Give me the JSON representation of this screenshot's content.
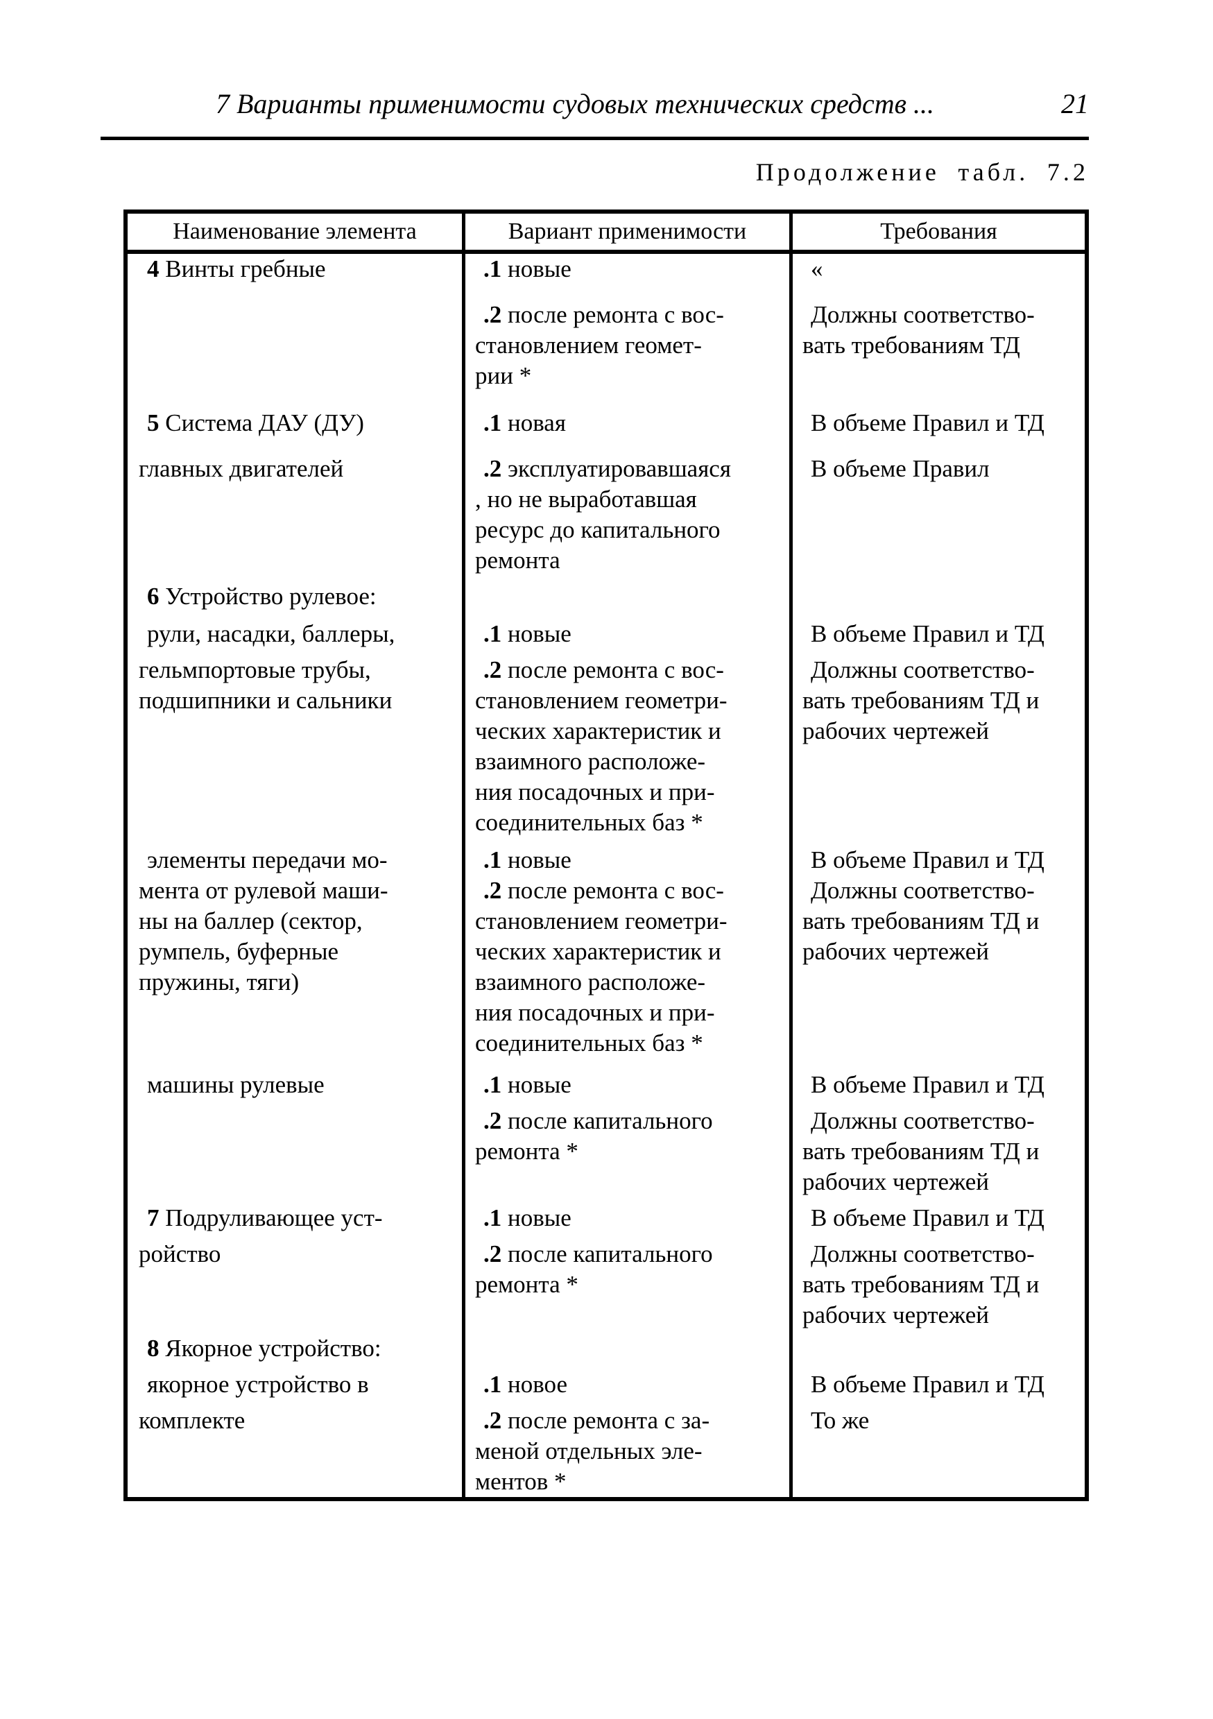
{
  "page": {
    "header": {
      "title": "7 Варианты применимости судовых технических средств ...",
      "page_number": "21"
    },
    "continuation": "Продолжение табл. 7.2",
    "table": {
      "columns": [
        "Наименование элемента",
        "Вариант применимости",
        "Требования"
      ],
      "rows": [
        {
          "sp": 0,
          "c": [
            {
              "b": "4",
              "t": " Винты гребные",
              "i": true
            },
            {
              "b": ".1",
              "t": " новые",
              "i": true
            },
            {
              "t": "«",
              "i": true
            }
          ]
        },
        {
          "sp": 22,
          "c": [
            null,
            {
              "b": ".2",
              "t": " после ремонта с вос-",
              "i": true
            },
            {
              "t": "Должны соответство-",
              "i": true
            }
          ]
        },
        {
          "sp": 0,
          "c": [
            null,
            {
              "t": "становлением геомет-"
            },
            {
              "t": "вать требованиям ТД"
            }
          ]
        },
        {
          "sp": 0,
          "c": [
            null,
            {
              "t": "рии *"
            },
            null
          ]
        },
        {
          "sp": 24,
          "c": [
            {
              "b": "5",
              "t": " Система ДАУ (ДУ)",
              "i": true
            },
            {
              "b": ".1",
              "t": " новая",
              "i": true
            },
            {
              "t": "В объеме Правил и ТД",
              "i": true
            }
          ]
        },
        {
          "sp": 22,
          "c": [
            {
              "t": "главных двигателей"
            },
            {
              "b": ".2",
              "t": " эксплуатировавшаяся",
              "i": true
            },
            {
              "t": "В объеме Правил",
              "i": true
            }
          ]
        },
        {
          "sp": 0,
          "c": [
            null,
            {
              "t": ", но не выработавшая"
            },
            null
          ]
        },
        {
          "sp": 0,
          "c": [
            null,
            {
              "t": "ресурс до капитального"
            },
            null
          ]
        },
        {
          "sp": 0,
          "c": [
            null,
            {
              "t": "ремонта"
            },
            null
          ]
        },
        {
          "sp": 8,
          "c": [
            {
              "b": "6",
              "t": " Устройство рулевое:",
              "i": true
            },
            null,
            null
          ]
        },
        {
          "sp": 10,
          "c": [
            {
              "t": "рули, насадки, баллеры,",
              "i": true
            },
            {
              "b": ".1",
              "t": " новые",
              "i": true
            },
            {
              "t": "В объеме Правил и ТД",
              "i": true
            }
          ]
        },
        {
          "sp": 8,
          "c": [
            {
              "t": "гельмпортовые трубы,"
            },
            {
              "b": ".2",
              "t": " после ремонта с вос-",
              "i": true
            },
            {
              "t": "Должны соответство-",
              "i": true
            }
          ]
        },
        {
          "sp": 0,
          "c": [
            {
              "t": "подшипники и сальники"
            },
            {
              "t": "становлением геометри-"
            },
            {
              "t": "вать требованиям ТД и"
            }
          ]
        },
        {
          "sp": 0,
          "c": [
            null,
            {
              "t": "ческих характеристик и"
            },
            {
              "t": "рабочих чертежей"
            }
          ]
        },
        {
          "sp": 0,
          "c": [
            null,
            {
              "t": "взаимного расположе-"
            },
            null
          ]
        },
        {
          "sp": 0,
          "c": [
            null,
            {
              "t": "ния посадочных и при-"
            },
            null
          ]
        },
        {
          "sp": 0,
          "c": [
            null,
            {
              "t": "соединительных баз *"
            },
            null
          ]
        },
        {
          "sp": 10,
          "c": [
            {
              "t": "элементы передачи мо-",
              "i": true
            },
            {
              "b": ".1",
              "t": " новые",
              "i": true
            },
            {
              "t": "В объеме Правил и ТД",
              "i": true
            }
          ]
        },
        {
          "sp": 0,
          "c": [
            {
              "t": "мента от рулевой маши-"
            },
            {
              "b": ".2",
              "t": " после ремонта с вос-",
              "i": true
            },
            {
              "t": "Должны соответство-",
              "i": true
            }
          ]
        },
        {
          "sp": 0,
          "c": [
            {
              "t": "ны на баллер (сектор,"
            },
            {
              "t": "становлением геометри-"
            },
            {
              "t": "вать требованиям ТД и"
            }
          ]
        },
        {
          "sp": 0,
          "c": [
            {
              "t": "румпель, буферные"
            },
            {
              "t": "ческих характеристик и"
            },
            {
              "t": "рабочих чертежей"
            }
          ]
        },
        {
          "sp": 0,
          "c": [
            {
              "t": "пружины, тяги)"
            },
            {
              "t": "взаимного расположе-"
            },
            null
          ]
        },
        {
          "sp": 0,
          "c": [
            null,
            {
              "t": "ния посадочных и при-"
            },
            null
          ]
        },
        {
          "sp": 0,
          "c": [
            null,
            {
              "t": "соединительных баз *"
            },
            null
          ]
        },
        {
          "sp": 16,
          "c": [
            {
              "t": "машины рулевые",
              "i": true
            },
            {
              "b": ".1",
              "t": " новые",
              "i": true
            },
            {
              "t": "В объеме Правил и ТД",
              "i": true
            }
          ]
        },
        {
          "sp": 8,
          "c": [
            null,
            {
              "b": ".2",
              "t": " после капитального",
              "i": true
            },
            {
              "t": "Должны соответство-",
              "i": true
            }
          ]
        },
        {
          "sp": 0,
          "c": [
            null,
            {
              "t": "ремонта *"
            },
            {
              "t": "вать требованиям ТД и"
            }
          ]
        },
        {
          "sp": 0,
          "c": [
            null,
            null,
            {
              "t": "рабочих чертежей"
            }
          ]
        },
        {
          "sp": 8,
          "c": [
            {
              "b": "7",
              "t": " Подруливающее уст-",
              "i": true
            },
            {
              "b": ".1",
              "t": " новые",
              "i": true
            },
            {
              "t": "В объеме Правил и ТД",
              "i": true
            }
          ]
        },
        {
          "sp": 8,
          "c": [
            {
              "t": "ройство"
            },
            {
              "b": ".2",
              "t": " после капитального",
              "i": true
            },
            {
              "t": "Должны соответство-",
              "i": true
            }
          ]
        },
        {
          "sp": 0,
          "c": [
            null,
            {
              "t": "ремонта *"
            },
            {
              "t": "вать требованиям ТД и"
            }
          ]
        },
        {
          "sp": 0,
          "c": [
            null,
            null,
            {
              "t": "рабочих чертежей"
            }
          ]
        },
        {
          "sp": 4,
          "c": [
            {
              "b": "8",
              "t": " Якорное устройство:",
              "i": true
            },
            null,
            null
          ]
        },
        {
          "sp": 8,
          "c": [
            {
              "t": "якорное устройство в",
              "i": true
            },
            {
              "b": ".1",
              "t": " новое",
              "i": true
            },
            {
              "t": "В объеме Правил и ТД",
              "i": true
            }
          ]
        },
        {
          "sp": 8,
          "c": [
            {
              "t": "комплекте"
            },
            {
              "b": ".2",
              "t": " после ремонта с за-",
              "i": true
            },
            {
              "t": "То же",
              "i": true
            }
          ]
        },
        {
          "sp": 0,
          "c": [
            null,
            {
              "t": "меной отдельных эле-"
            },
            null
          ]
        },
        {
          "sp": 0,
          "c": [
            null,
            {
              "t": "ментов *"
            },
            null
          ]
        }
      ]
    }
  }
}
